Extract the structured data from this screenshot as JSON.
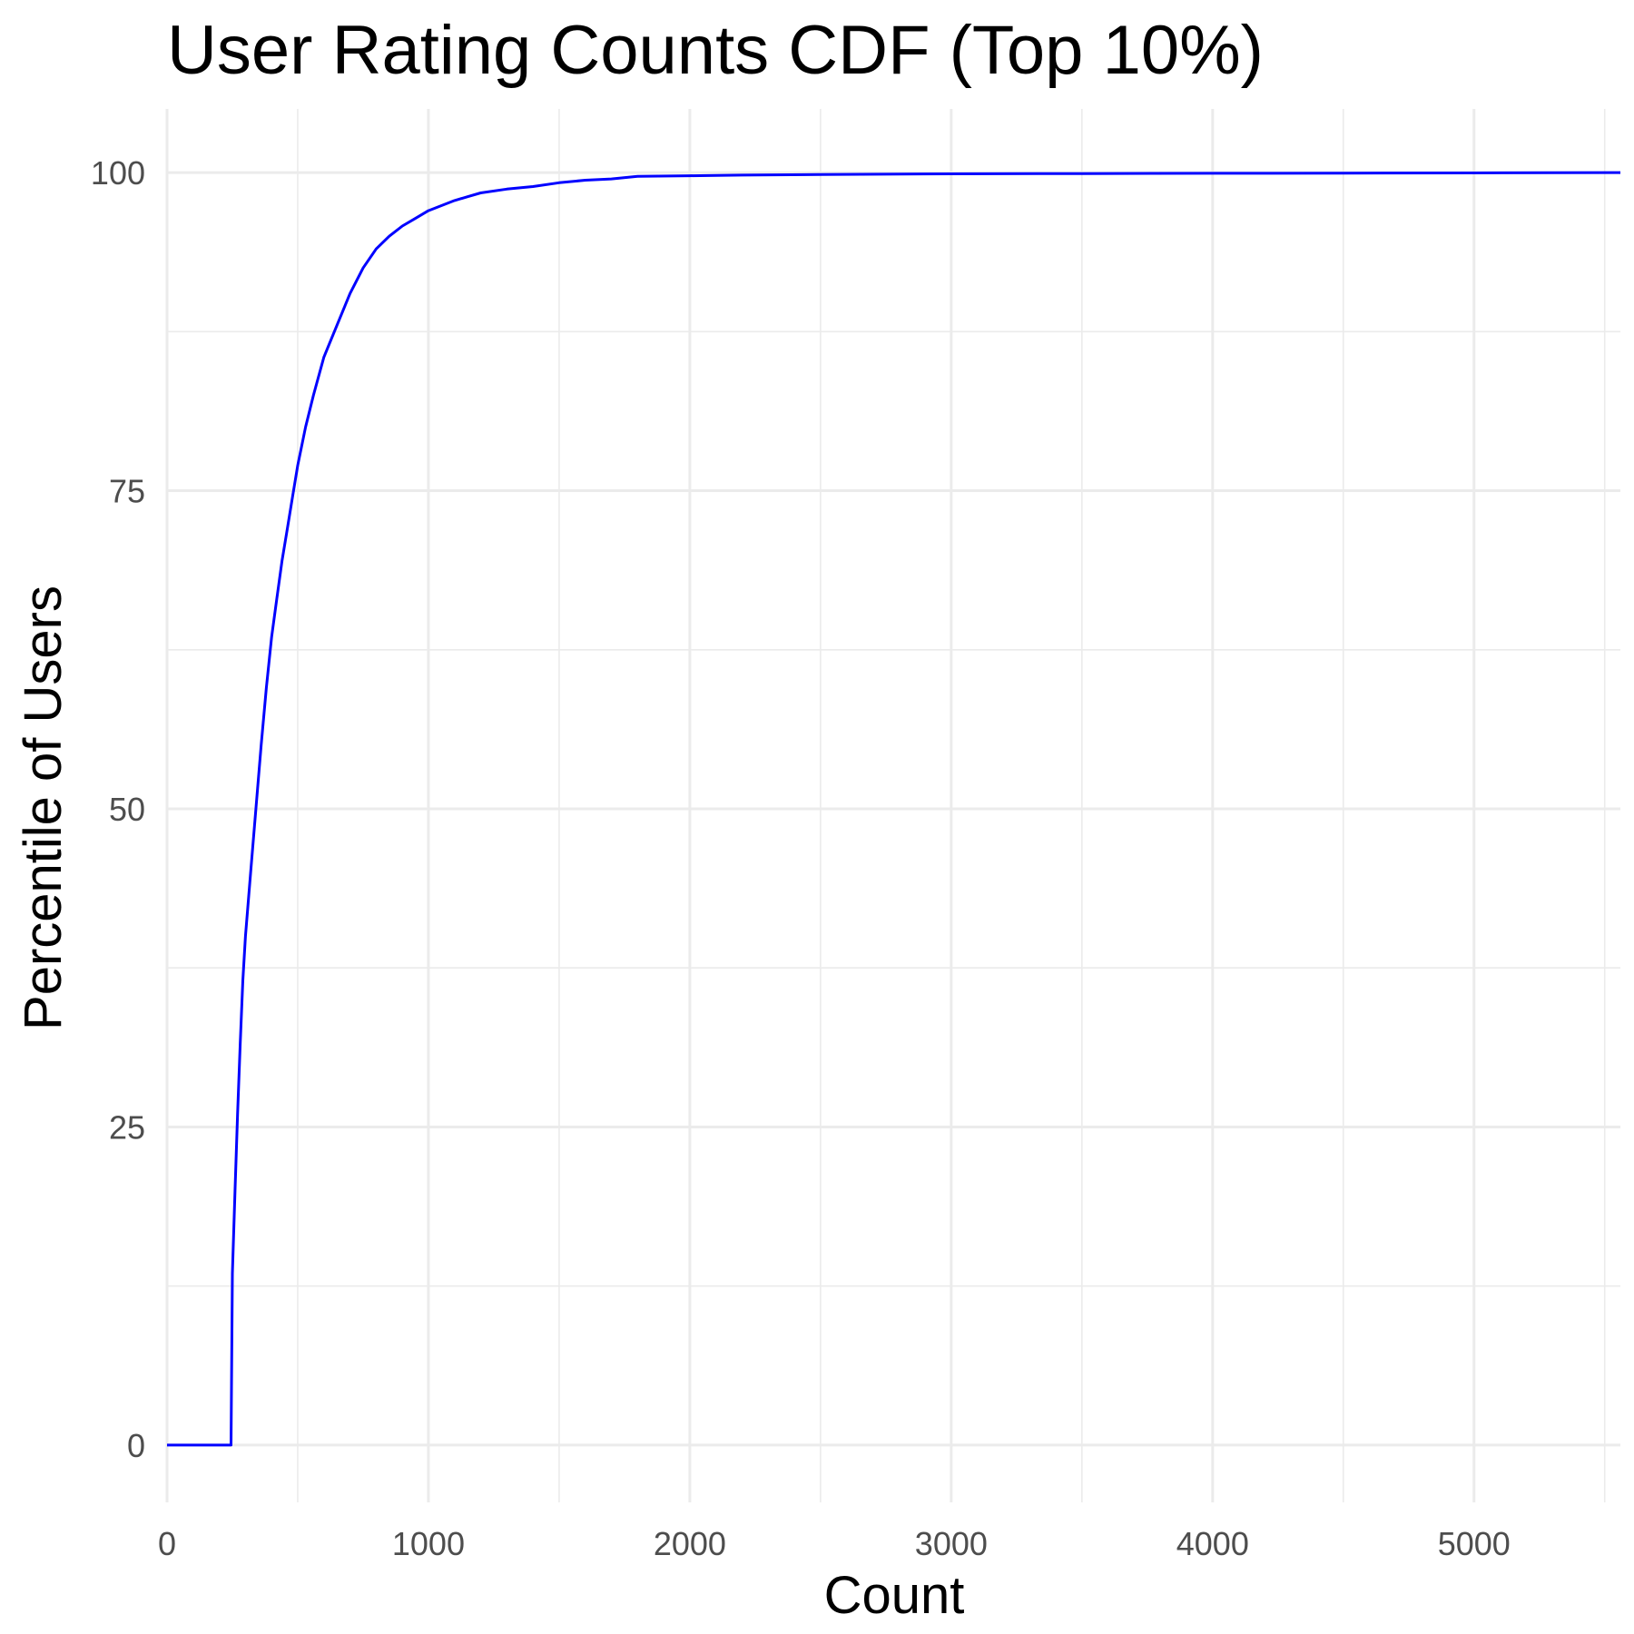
{
  "chart_data": {
    "type": "line",
    "title": "User Rating Counts CDF (Top 10%)",
    "xlabel": "Count",
    "ylabel": "Percentile of Users",
    "xlim": [
      0,
      5560
    ],
    "ylim": [
      -4.5,
      105
    ],
    "x_ticks": [
      0,
      1000,
      2000,
      3000,
      4000,
      5000
    ],
    "x_tick_labels": [
      "0",
      "1000",
      "2000",
      "3000",
      "4000",
      "5000"
    ],
    "x_minor_ticks": [
      500,
      1500,
      2500,
      3500,
      4500,
      5500
    ],
    "y_ticks": [
      0,
      25,
      50,
      75,
      100
    ],
    "y_tick_labels": [
      "0",
      "25",
      "50",
      "75",
      "100"
    ],
    "y_minor_ticks": [
      12.5,
      37.5,
      62.5,
      87.5
    ],
    "grid": true,
    "legend": "none",
    "series": [
      {
        "color": "#0000ff",
        "x": [
          0,
          245,
          250,
          260,
          270,
          280,
          290,
          300,
          320,
          340,
          360,
          380,
          400,
          420,
          440,
          460,
          480,
          500,
          530,
          560,
          600,
          650,
          700,
          750,
          800,
          850,
          900,
          950,
          1000,
          1050,
          1100,
          1150,
          1200,
          1300,
          1400,
          1500,
          1600,
          1700,
          1800,
          2000,
          2200,
          2500,
          3000,
          3500,
          4000,
          4500,
          5000,
          5300,
          5560
        ],
        "y": [
          0,
          0,
          13.5,
          20,
          26,
          31.5,
          36.5,
          40,
          45,
          50,
          55,
          59.5,
          63.5,
          66.5,
          69.5,
          72,
          74.5,
          77,
          80,
          82.5,
          85.5,
          88,
          90.5,
          92.5,
          94,
          95,
          95.8,
          96.4,
          97,
          97.4,
          97.8,
          98.1,
          98.4,
          98.7,
          98.9,
          99.2,
          99.4,
          99.5,
          99.7,
          99.75,
          99.8,
          99.85,
          99.9,
          99.92,
          99.94,
          99.96,
          99.97,
          99.99,
          100
        ]
      }
    ]
  }
}
